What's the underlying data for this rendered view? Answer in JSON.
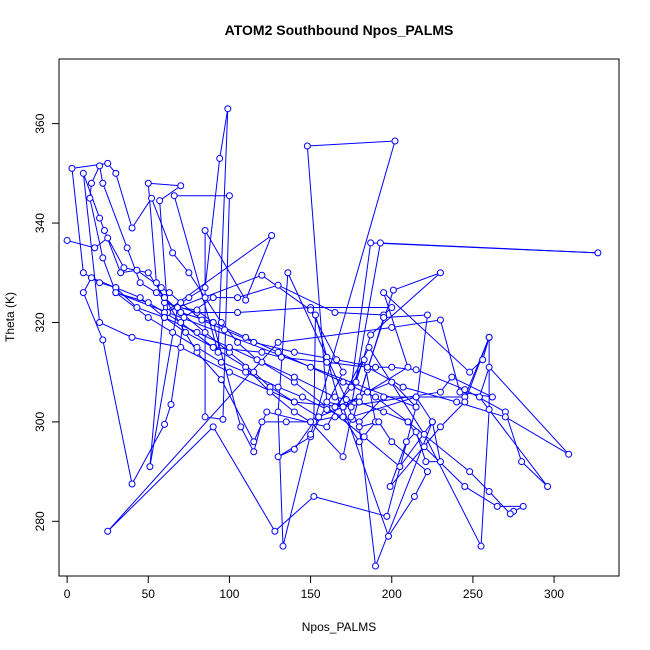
{
  "chart_data": {
    "type": "line",
    "title": "ATOM2 Southbound Npos_PALMS",
    "xlabel": "Npos_PALMS",
    "ylabel": "Theta (K)",
    "xlim": [
      -5,
      340
    ],
    "ylim": [
      269,
      373
    ],
    "xticks": [
      0,
      50,
      100,
      150,
      200,
      250,
      300
    ],
    "yticks": [
      280,
      300,
      320,
      340,
      360
    ],
    "grid": false,
    "line_color": "#0000ff",
    "series": [
      {
        "name": "",
        "points": [
          [
            0,
            336.5
          ],
          [
            17,
            335
          ],
          [
            25,
            337
          ],
          [
            35,
            331
          ],
          [
            50,
            330
          ],
          [
            60,
            325
          ],
          [
            70,
            322
          ],
          [
            85,
            318
          ],
          [
            100,
            314
          ],
          [
            115,
            310
          ],
          [
            125,
            307
          ],
          [
            140,
            304
          ],
          [
            155,
            301
          ],
          [
            170,
            303
          ],
          [
            185,
            306
          ],
          [
            200,
            308
          ],
          [
            215,
            303
          ],
          [
            30,
            326
          ],
          [
            50,
            324
          ],
          [
            70,
            320
          ],
          [
            90,
            315
          ],
          [
            110,
            311
          ],
          [
            125,
            306
          ],
          [
            140,
            302
          ],
          [
            150,
            300
          ],
          [
            165,
            301
          ],
          [
            180,
            300
          ],
          [
            195,
            305
          ],
          [
            215,
            305
          ],
          [
            225,
            300
          ],
          [
            205,
            291
          ],
          [
            183,
            297
          ],
          [
            160,
            303
          ],
          [
            140,
            308
          ],
          [
            120,
            312
          ],
          [
            100,
            315
          ],
          [
            80,
            318
          ],
          [
            60,
            321
          ],
          [
            45,
            325
          ],
          [
            30,
            327
          ],
          [
            15,
            329
          ],
          [
            10,
            326
          ],
          [
            22,
            316.5
          ],
          [
            40,
            287.5
          ],
          [
            60,
            299.5
          ],
          [
            64,
            303.5
          ],
          [
            72,
            321
          ],
          [
            90,
            325
          ],
          [
            105,
            325
          ],
          [
            130,
            327.5
          ],
          [
            165,
            322
          ],
          [
            195,
            321.5
          ],
          [
            200,
            323
          ],
          [
            150,
            323
          ],
          [
            105,
            322
          ],
          [
            80,
            322
          ],
          [
            60,
            324
          ],
          [
            55,
            328
          ],
          [
            50,
            348
          ],
          [
            70,
            347.5
          ],
          [
            57,
            344.5
          ],
          [
            62,
            322
          ],
          [
            75,
            325
          ],
          [
            85,
            327
          ],
          [
            94,
            353
          ],
          [
            99,
            363
          ],
          [
            93,
            314
          ],
          [
            66,
            345.5
          ],
          [
            100,
            345.5
          ],
          [
            96,
            300.5
          ],
          [
            85,
            301
          ],
          [
            85,
            338.5
          ],
          [
            110,
            324.5
          ],
          [
            126,
            337.5
          ],
          [
            60,
            322
          ],
          [
            120,
            329.5
          ],
          [
            150,
            322.5
          ],
          [
            170,
            310
          ],
          [
            150,
            297
          ],
          [
            130,
            293
          ],
          [
            140,
            294.5
          ],
          [
            152,
            300
          ],
          [
            153,
            321.5
          ],
          [
            160,
            313
          ],
          [
            170,
            301
          ],
          [
            180,
            296
          ],
          [
            190,
            300
          ],
          [
            183,
            312.5
          ],
          [
            175,
            307
          ],
          [
            187,
            336
          ],
          [
            327,
            334
          ],
          [
            193,
            336
          ],
          [
            175,
            303
          ],
          [
            160,
            304
          ],
          [
            148,
            355.5
          ],
          [
            202,
            356.5
          ],
          [
            150,
            297.5
          ],
          [
            133,
            275
          ],
          [
            130,
            302
          ],
          [
            136,
            330
          ],
          [
            172,
            304.5
          ],
          [
            176,
            300.5
          ],
          [
            185,
            310.5
          ],
          [
            201,
            326.5
          ],
          [
            230,
            330
          ],
          [
            187,
            317.5
          ],
          [
            178,
            308
          ],
          [
            165,
            303
          ],
          [
            180,
            305
          ],
          [
            195,
            321
          ],
          [
            222,
            321.5
          ],
          [
            215,
            303
          ],
          [
            197,
            281
          ],
          [
            152,
            285
          ],
          [
            128,
            278
          ],
          [
            90,
            299
          ],
          [
            25,
            278
          ],
          [
            130,
            316
          ],
          [
            200,
            319
          ],
          [
            230,
            320.5
          ],
          [
            242,
            306
          ],
          [
            262,
            305
          ],
          [
            237,
            309
          ],
          [
            230,
            306
          ],
          [
            170,
            303
          ],
          [
            210,
            311
          ],
          [
            195,
            326
          ],
          [
            248,
            310
          ],
          [
            256,
            312.5
          ],
          [
            260,
            317
          ],
          [
            260,
            302.5
          ],
          [
            255,
            275
          ],
          [
            220,
            297.5
          ],
          [
            186,
            315
          ],
          [
            160,
            299
          ],
          [
            123,
            302
          ],
          [
            115,
            296
          ],
          [
            95,
            308.5
          ],
          [
            80,
            314
          ],
          [
            60,
            325
          ],
          [
            51,
            291
          ],
          [
            68,
            323
          ],
          [
            80,
            322.5
          ],
          [
            90,
            320
          ],
          [
            107,
            299
          ],
          [
            115,
            294
          ],
          [
            120,
            300
          ],
          [
            135,
            300
          ],
          [
            150,
            300
          ],
          [
            170,
            293
          ],
          [
            175,
            301
          ],
          [
            215,
            305
          ],
          [
            245,
            305
          ],
          [
            260,
            317
          ],
          [
            245,
            304
          ],
          [
            230,
            299
          ],
          [
            199,
            287
          ],
          [
            209,
            296
          ],
          [
            215,
            298
          ],
          [
            221,
            292
          ],
          [
            230,
            292
          ],
          [
            225,
            300
          ],
          [
            190,
            271
          ],
          [
            180,
            299
          ],
          [
            192,
            300
          ],
          [
            200,
            296
          ],
          [
            222,
            290
          ],
          [
            214,
            285
          ],
          [
            198,
            277
          ],
          [
            170,
            303
          ],
          [
            140,
            304
          ],
          [
            100,
            310
          ],
          [
            70,
            315
          ],
          [
            40,
            317
          ],
          [
            20,
            320
          ],
          [
            10,
            350
          ],
          [
            20,
            341
          ],
          [
            23,
            338.5
          ],
          [
            33,
            330
          ],
          [
            43,
            330.5
          ],
          [
            58,
            327
          ],
          [
            63,
            326
          ],
          [
            70,
            324
          ],
          [
            83,
            320.5
          ],
          [
            97,
            318.5
          ],
          [
            115,
            316
          ],
          [
            140,
            314
          ],
          [
            166,
            312.5
          ],
          [
            190,
            311
          ],
          [
            200,
            311
          ],
          [
            215,
            310.5
          ],
          [
            245,
            306.5
          ],
          [
            270,
            302
          ],
          [
            280,
            292
          ],
          [
            296,
            287
          ],
          [
            254,
            305
          ],
          [
            260,
            311
          ],
          [
            309,
            293.5
          ],
          [
            270,
            301
          ],
          [
            240,
            304
          ],
          [
            207,
            307
          ],
          [
            185,
            311
          ],
          [
            160,
            312
          ],
          [
            132,
            313
          ],
          [
            120,
            314
          ],
          [
            90,
            315
          ],
          [
            73,
            318
          ],
          [
            60,
            321
          ],
          [
            43,
            323
          ],
          [
            30,
            327
          ],
          [
            20,
            328
          ],
          [
            10,
            330
          ],
          [
            3,
            351
          ],
          [
            25,
            352
          ],
          [
            30,
            350
          ],
          [
            40,
            339
          ],
          [
            52,
            345
          ],
          [
            65,
            334
          ],
          [
            75,
            330
          ],
          [
            85,
            325
          ],
          [
            95,
            320
          ],
          [
            105,
            316
          ],
          [
            117,
            312.5
          ],
          [
            140,
            309
          ],
          [
            165,
            305
          ],
          [
            180,
            304
          ],
          [
            195,
            302
          ],
          [
            210,
            300
          ],
          [
            220,
            295
          ],
          [
            245,
            287
          ],
          [
            265,
            283
          ],
          [
            281,
            283
          ],
          [
            275,
            282
          ],
          [
            273,
            281.5
          ],
          [
            260,
            286
          ],
          [
            248,
            290
          ],
          [
            210,
            300
          ],
          [
            190,
            305
          ],
          [
            170,
            308
          ],
          [
            150,
            311
          ],
          [
            130,
            314
          ],
          [
            110,
            317
          ],
          [
            90,
            320
          ],
          [
            70,
            322
          ],
          [
            55,
            326
          ],
          [
            45,
            328
          ],
          [
            37,
            335
          ],
          [
            22,
            348
          ],
          [
            20,
            351.5
          ],
          [
            15,
            348
          ],
          [
            14,
            345
          ],
          [
            22,
            333
          ],
          [
            30,
            326
          ],
          [
            50,
            321
          ],
          [
            65,
            318
          ],
          [
            80,
            315
          ],
          [
            95,
            312
          ],
          [
            110,
            310
          ],
          [
            130,
            307
          ],
          [
            145,
            305
          ],
          [
            160,
            302.5
          ],
          [
            170,
            301
          ]
        ]
      }
    ]
  }
}
